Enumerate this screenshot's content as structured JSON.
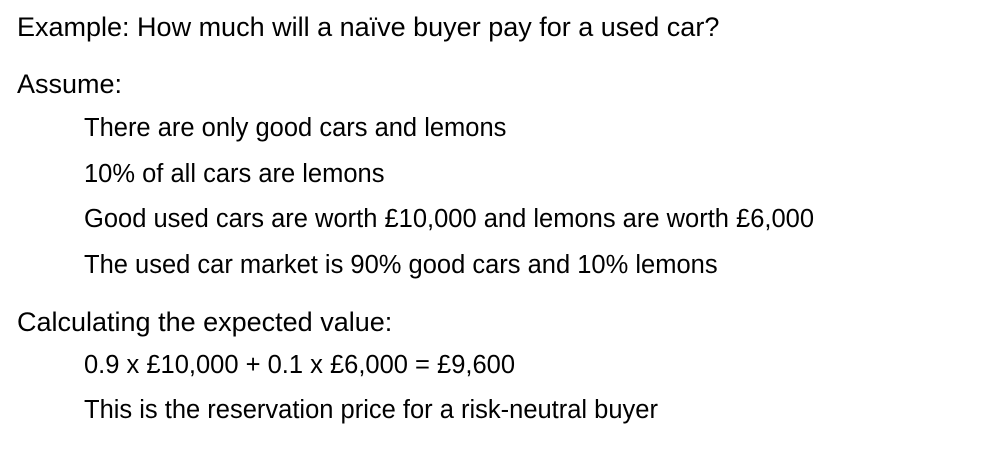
{
  "slide": {
    "heading": "Example: How much will a naïve buyer pay for a used car?",
    "assume_label": "Assume:",
    "assumptions": [
      "There are only good cars and lemons",
      "10% of all cars are lemons",
      "Good used cars are worth £10,000 and lemons are worth £6,000",
      "The used car market is 90% good cars and 10% lemons"
    ],
    "calc_label": "Calculating the expected value:",
    "calculation": "0.9 x £10,000 + 0.1 x £6,000 = £9,600",
    "conclusion": "This is the reservation price for a risk-neutral buyer"
  }
}
